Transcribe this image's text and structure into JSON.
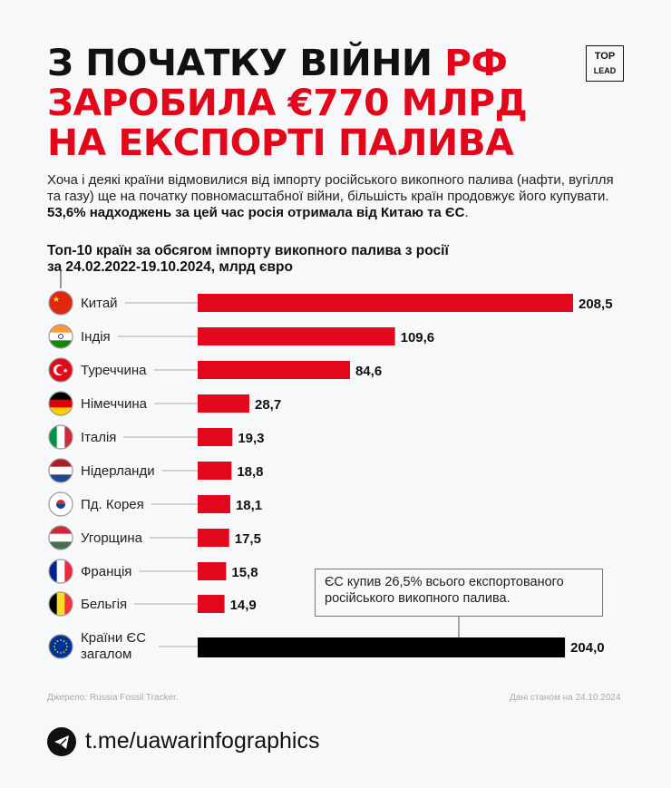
{
  "title": {
    "line1_black": "З ПОЧАТКУ ВІЙНИ ",
    "line1_red": "РФ",
    "line2": "ЗАРОБИЛА €770 МЛРД",
    "line3": "НА ЕКСПОРТІ ПАЛИВА"
  },
  "logo": {
    "line1": "TOP",
    "line2": "LEAD"
  },
  "intro": {
    "text": "Хоча і деякі країни відмовилися від імпорту російського викопного палива (нафти, вугілля та газу) ще на початку повномасштабної війни, більшість країн продовжує його купувати. ",
    "bold": "53,6% надходжень за цей час росія отримала від Китаю та ЄС",
    "end": "."
  },
  "chart_data": {
    "type": "bar",
    "orientation": "horizontal",
    "title": "Топ-10 країн за обсягом імпорту викопного палива з росії за 24.02.2022-19.10.2024, млрд євро",
    "title_line1": "Топ-10 країн за обсягом імпорту викопного палива з росії",
    "title_line2": "за 24.02.2022-19.10.2024, млрд євро",
    "categories": [
      "Китай",
      "Індія",
      "Туреччина",
      "Німеччина",
      "Італія",
      "Нідерланди",
      "Пд. Корея",
      "Угорщина",
      "Франція",
      "Бельгія",
      "Країни ЄС загалом"
    ],
    "values": [
      208.5,
      109.6,
      84.6,
      28.7,
      19.3,
      18.8,
      18.1,
      17.5,
      15.8,
      14.9,
      204.0
    ],
    "value_labels": [
      "208,5",
      "109,6",
      "84,6",
      "28,7",
      "19,3",
      "18,8",
      "18,1",
      "17,5",
      "15,8",
      "14,9",
      "204,0"
    ],
    "flags": [
      "china",
      "india",
      "turkey",
      "germany",
      "italy",
      "netherlands",
      "south-korea",
      "hungary",
      "france",
      "belgium",
      "eu"
    ],
    "bar_colors": {
      "country": "#e3071b",
      "eu_total": "#000000"
    },
    "annotation": "ЄС купив 26,5% всього експортованого російського викопного палива."
  },
  "footer": {
    "source": "Джерело: Russia Fossil Tracker.",
    "date": "Дані станом на  24.10.2024",
    "link": "t.me/uawarinfographics"
  }
}
